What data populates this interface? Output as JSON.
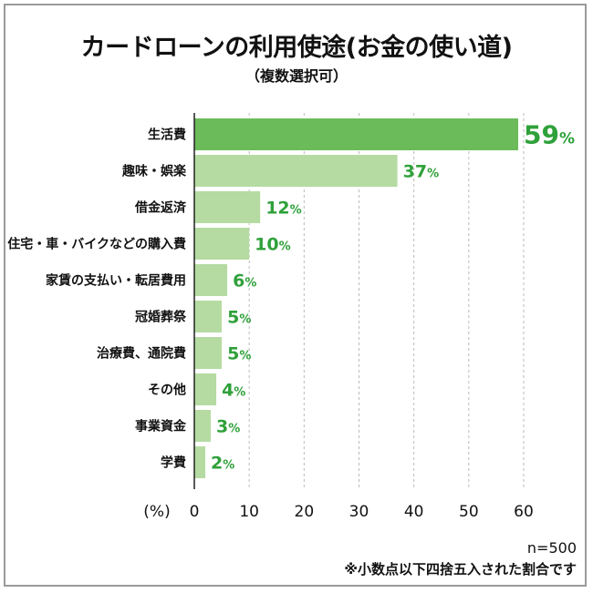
{
  "title": "カードローンの利用使途(お金の使い道)",
  "subtitle": "（複数選択可）",
  "footer": {
    "n_label": "n=500",
    "note": "※小数点以下四捨五入された割合です"
  },
  "colors": {
    "highlight_bar": "#6cbb5a",
    "bar": "#b5dba2",
    "value_label": "#2fa13a",
    "grid": "#bbbbbb"
  },
  "chart_data": {
    "type": "bar",
    "orientation": "horizontal",
    "title": "カードローンの利用使途(お金の使い道)",
    "subtitle": "（複数選択可）",
    "categories": [
      "生活費",
      "趣味・娯楽",
      "借金返済",
      "住宅・車・バイクなどの購入費",
      "家賃の支払い・転居費用",
      "冠婚葬祭",
      "治療費、通院費",
      "その他",
      "事業資金",
      "学費"
    ],
    "values": [
      59,
      37,
      12,
      10,
      6,
      5,
      5,
      4,
      3,
      2
    ],
    "value_suffix": "%",
    "xlabel": "(%)",
    "ylabel": "",
    "xlim": [
      0,
      60
    ],
    "xticks": [
      0,
      10,
      20,
      30,
      40,
      50,
      60
    ],
    "grid": "vertical dashed",
    "highlight_index": 0
  }
}
